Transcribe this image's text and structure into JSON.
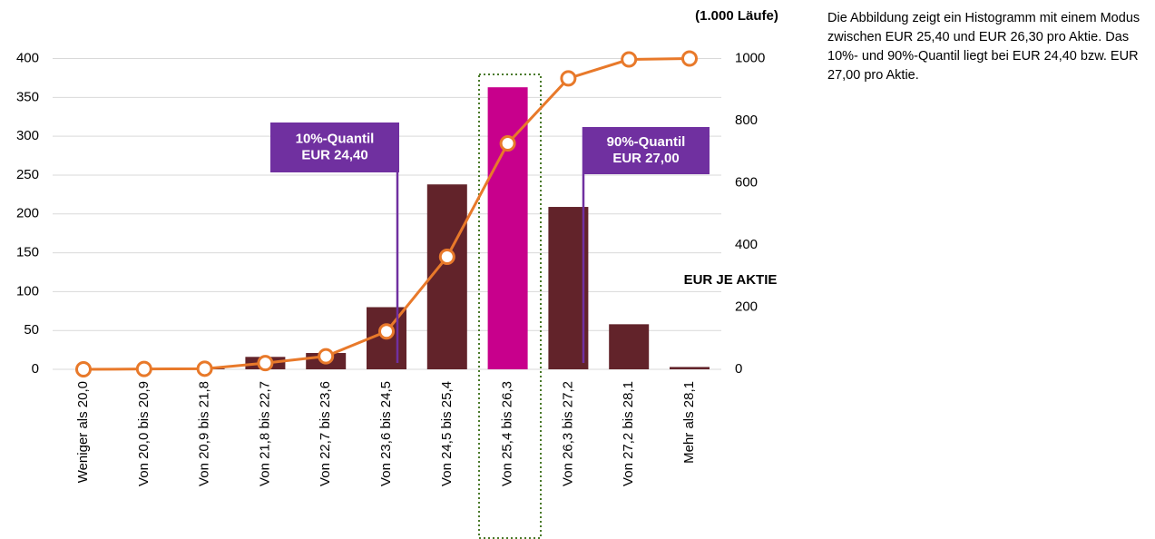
{
  "chart_data": {
    "type": "bar",
    "categories": [
      "Weniger als 20,0",
      "Von 20,0 bis 20,9",
      "Von 20,9 bis 21,8",
      "Von 21,8 bis 22,7",
      "Von 22,7 bis 23,6",
      "Von 23,6 bis 24,5",
      "Von 24,5 bis 25,4",
      "Von 25,4 bis 26,3",
      "Von 26,3 bis 27,2",
      "Von 27,2 bis 28,1",
      "Mehr als 28,1"
    ],
    "series": [
      {
        "type": "bar",
        "color": "#62232a",
        "highlight_color": "#c8008c",
        "highlight_index": 7,
        "values": [
          0,
          1,
          1,
          16,
          21,
          80,
          238,
          363,
          209,
          58,
          3
        ]
      },
      {
        "type": "line",
        "axis": "y2",
        "color": "#e8792a",
        "values": [
          0,
          1,
          2,
          20,
          42,
          122,
          362,
          727,
          936,
          997,
          1000
        ]
      }
    ],
    "ylim": [
      0,
      400
    ],
    "yticks": [
      0,
      50,
      100,
      150,
      200,
      250,
      300,
      350,
      400
    ],
    "y2lim": [
      0,
      1000
    ],
    "y2ticks": [
      0,
      200,
      400,
      600,
      800,
      1000
    ],
    "y2_label": "(1.000 Läufe)",
    "x_label": "EUR JE AKTIE",
    "grid": true,
    "annotations": [
      {
        "lines": [
          "10%-Quantil",
          "EUR 24,40"
        ]
      },
      {
        "lines": [
          "90%-Quantil",
          "EUR 27,00"
        ]
      }
    ],
    "annotation_color": "#7030a0"
  },
  "note": "Die Abbildung zeigt ein Histogramm mit einem Modus zwischen EUR 25,40 und EUR 26,30 pro Aktie. Das 10%- und 90%-Quantil liegt bei EUR 24,40 bzw. EUR 27,00 pro Aktie."
}
